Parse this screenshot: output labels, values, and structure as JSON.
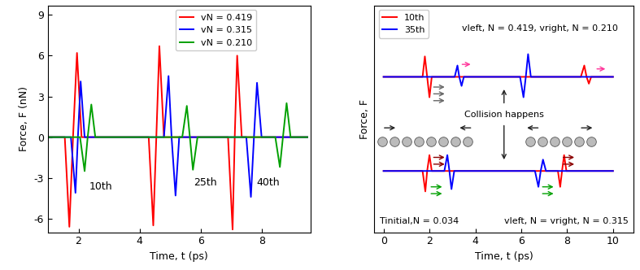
{
  "chart_data": [
    {
      "type": "line",
      "x_label": "Time, t (ps)",
      "y_label": "Force, F (nN)",
      "xlim": [
        1,
        9.6
      ],
      "ylim": [
        -7,
        9.7
      ],
      "xticks": [
        2,
        4,
        6,
        8
      ],
      "yticks": [
        -6,
        -3,
        0,
        3,
        6,
        9
      ],
      "legend": "upper center",
      "annotations": [
        "10th",
        "25th",
        "40th"
      ],
      "series": [
        {
          "name": "vN = 0.419",
          "color": "#ff0000",
          "x": [
            1.0,
            1.55,
            1.7,
            1.82,
            1.95,
            2.1,
            4.3,
            4.45,
            4.55,
            4.65,
            4.8,
            6.9,
            7.05,
            7.12,
            7.2,
            7.35,
            9.5
          ],
          "values": [
            0,
            0,
            -6.6,
            0,
            6.2,
            0,
            0,
            -6.5,
            0,
            6.7,
            0,
            0,
            -6.8,
            0,
            6.0,
            0,
            0
          ]
        },
        {
          "name": "vN = 0.315",
          "color": "#0000ff",
          "x": [
            1.0,
            1.75,
            1.9,
            1.98,
            2.07,
            2.2,
            4.8,
            4.95,
            5.05,
            5.18,
            5.3,
            7.5,
            7.65,
            7.75,
            7.85,
            8.0,
            9.5
          ],
          "values": [
            0,
            0,
            -4.1,
            0,
            4.1,
            0,
            0,
            4.5,
            0,
            -4.3,
            0,
            0,
            -4.4,
            0,
            4.0,
            0,
            0
          ]
        },
        {
          "name": "vN = 0.210",
          "color": "#00a000",
          "x": [
            1.0,
            2.05,
            2.2,
            2.3,
            2.42,
            2.55,
            5.4,
            5.55,
            5.65,
            5.75,
            5.9,
            8.45,
            8.6,
            8.7,
            8.82,
            8.95,
            9.5
          ],
          "values": [
            0,
            0,
            -2.5,
            0,
            2.4,
            0,
            0,
            2.3,
            0,
            -2.4,
            0,
            0,
            -2.2,
            0,
            2.5,
            0,
            0
          ]
        }
      ]
    },
    {
      "type": "line",
      "x_label": "Time, t (ps)",
      "y_label": "Force, F",
      "xlim": [
        -0.4,
        10.9
      ],
      "ylim": [
        0,
        10
      ],
      "xticks": [
        0,
        2,
        4,
        6,
        8,
        10
      ],
      "tick_labels": "x",
      "legend": "upper left",
      "annotations": [
        "vleft, N = 0.419, vright, N = 0.210",
        "Collision happens",
        "Tinitial,N = 0.034",
        "vleft, N = vright, N = 0.315"
      ],
      "series": [
        {
          "name": "10th",
          "color": "#ff0000",
          "x": [
            0,
            1.7,
            1.8,
            1.9,
            2.0,
            2.1,
            8.6,
            8.75,
            8.85,
            8.95,
            9.05,
            10,
            null,
            0,
            1.7,
            1.82,
            1.9,
            2.0,
            2.1,
            7.6,
            7.7,
            7.78,
            7.87,
            7.97,
            10
          ],
          "values": [
            6.85,
            6.85,
            7.75,
            6.85,
            5.95,
            6.85,
            6.85,
            7.35,
            6.85,
            6.55,
            6.85,
            6.85,
            null,
            2.7,
            2.7,
            1.8,
            2.7,
            3.4,
            2.7,
            2.7,
            2.0,
            2.7,
            3.4,
            2.7,
            2.7
          ]
        },
        {
          "name": "35th",
          "color": "#0000ff",
          "x": [
            0,
            3.1,
            3.22,
            3.3,
            3.4,
            3.5,
            5.95,
            6.1,
            6.2,
            6.3,
            6.42,
            10,
            null,
            0,
            2.65,
            2.78,
            2.87,
            2.96,
            3.08,
            6.6,
            6.75,
            6.85,
            6.95,
            7.08,
            10
          ],
          "values": [
            6.85,
            6.85,
            7.35,
            6.85,
            6.45,
            6.85,
            6.85,
            5.95,
            6.85,
            7.85,
            6.85,
            6.85,
            null,
            2.7,
            2.7,
            3.4,
            2.7,
            1.9,
            2.7,
            2.7,
            2.0,
            2.7,
            3.2,
            2.7,
            2.7
          ]
        }
      ]
    }
  ]
}
